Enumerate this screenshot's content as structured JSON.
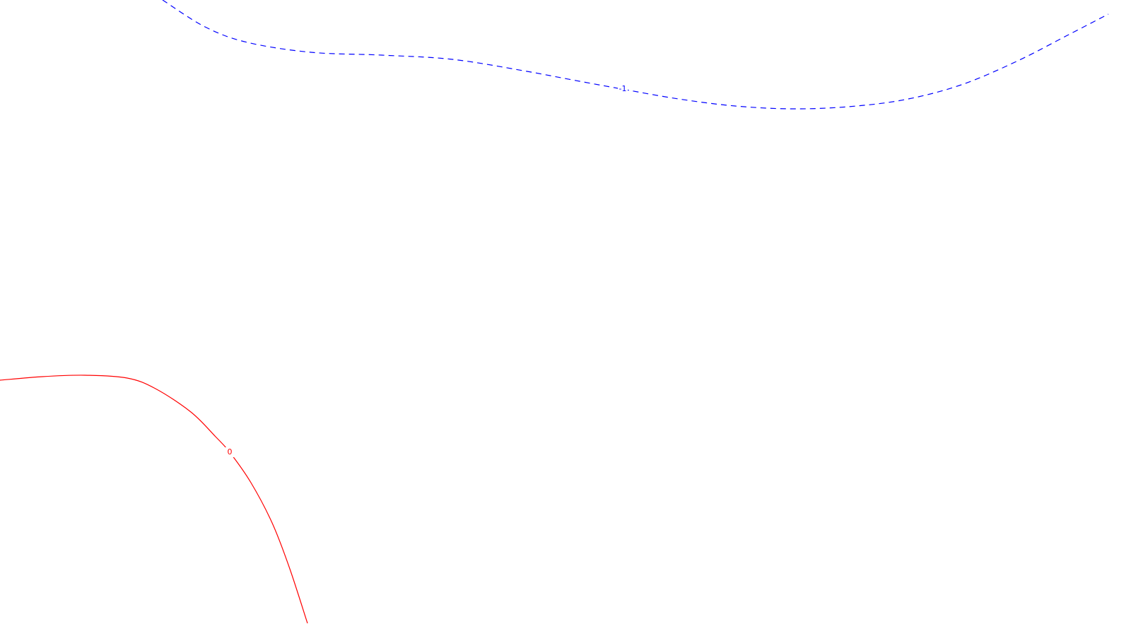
{
  "chart_data": {
    "type": "contour",
    "title": "",
    "xlabel": "",
    "ylabel": "",
    "grid": false,
    "legend": "none",
    "series": [
      {
        "level": "-1",
        "label": "-1",
        "color": "#0000ff",
        "line_style": "dashed",
        "points": [
          [
            230,
            0
          ],
          [
            290,
            38
          ],
          [
            350,
            60
          ],
          [
            440,
            74
          ],
          [
            540,
            78
          ],
          [
            640,
            84
          ],
          [
            740,
            100
          ],
          [
            820,
            115
          ],
          [
            880,
            126
          ],
          [
            960,
            140
          ],
          [
            1040,
            150
          ],
          [
            1120,
            154
          ],
          [
            1200,
            151
          ],
          [
            1280,
            141
          ],
          [
            1360,
            120
          ],
          [
            1440,
            86
          ],
          [
            1510,
            50
          ],
          [
            1568,
            20
          ]
        ],
        "label_position": [
          881,
          126
        ]
      },
      {
        "level": "0",
        "label": "0",
        "color": "#ff0000",
        "line_style": "solid",
        "points": [
          [
            0,
            538
          ],
          [
            60,
            533
          ],
          [
            120,
            531
          ],
          [
            180,
            535
          ],
          [
            220,
            550
          ],
          [
            270,
            583
          ],
          [
            305,
            618
          ],
          [
            325,
            640
          ],
          [
            355,
            683
          ],
          [
            385,
            740
          ],
          [
            410,
            805
          ],
          [
            435,
            882
          ]
        ],
        "label_position": [
          325,
          640
        ]
      }
    ]
  }
}
